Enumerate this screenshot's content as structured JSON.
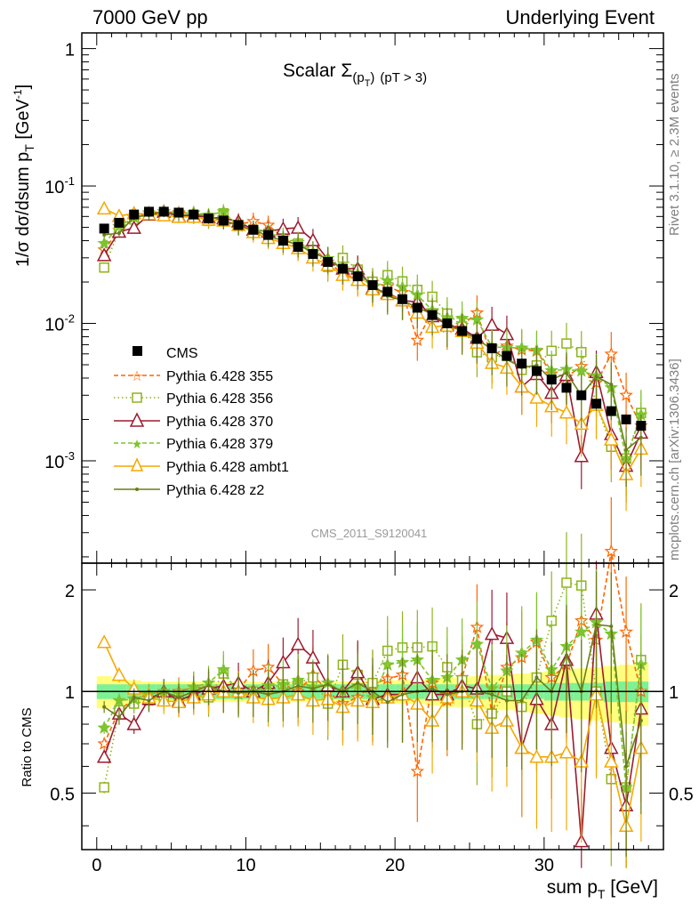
{
  "header": {
    "left": "7000 GeV pp",
    "right": "Underlying Event"
  },
  "plot_title": {
    "prefix": "Scalar ",
    "sigma": "Σ",
    "sub": "(p",
    "subsub": "T",
    "close": ")",
    "cut": "(pT >  3)"
  },
  "side_labels": {
    "rivet": "Rivet 3.1.10, ≥ 2.3M events",
    "mcplots": "mcplots.cern.ch [arXiv:1306.3436]"
  },
  "analysis_id": "CMS_2011_S9120041",
  "axes": {
    "ylabel_main": "1/σ dσ/dsum p",
    "ylabel_main_sub": "T",
    "ylabel_main_unit": " [GeV",
    "ylabel_main_exp": "-1",
    "ylabel_main_close": "]",
    "ylabel_ratio": "Ratio to CMS",
    "xlabel": "sum p",
    "xlabel_sub": "T",
    "xlabel_unit": " [GeV]",
    "x_ticks": [
      "0",
      "10",
      "20",
      "30"
    ],
    "y_main_ticks": [
      "1",
      "10",
      "10",
      "10"
    ],
    "y_main_exps": [
      "",
      "-1",
      "-2",
      "-3"
    ],
    "y_ratio_ticks": [
      "0.5",
      "1",
      "2"
    ]
  },
  "legend": [
    {
      "label": "CMS",
      "color": "#000000",
      "marker": "square-filled",
      "line": "none"
    },
    {
      "label": "Pythia 6.428 355",
      "color": "#ff6600",
      "marker": "star",
      "line": "dashed"
    },
    {
      "label": "Pythia 6.428 356",
      "color": "#8fb31d",
      "marker": "square-open",
      "line": "dotted"
    },
    {
      "label": "Pythia 6.428 370",
      "color": "#9b1b30",
      "marker": "triangle-open",
      "line": "solid"
    },
    {
      "label": "Pythia 6.428 379",
      "color": "#7dc42e",
      "marker": "star",
      "line": "dashed"
    },
    {
      "label": "Pythia 6.428 ambt1",
      "color": "#f5a800",
      "marker": "triangle-open",
      "line": "solid"
    },
    {
      "label": "Pythia 6.428 z2",
      "color": "#6b7d1a",
      "marker": "dot",
      "line": "solid"
    }
  ],
  "chart_data": {
    "type": "line",
    "log_y": true,
    "xlim": [
      -1,
      38
    ],
    "ylim_main": [
      0.00018,
      1.3
    ],
    "ylim_ratio": [
      0.34,
      2.4
    ],
    "grid": false,
    "legend_position": "bottom-left",
    "x": [
      0.5,
      1.5,
      2.5,
      3.5,
      4.5,
      5.5,
      6.5,
      7.5,
      8.5,
      9.5,
      10.5,
      11.5,
      12.5,
      13.5,
      14.5,
      15.5,
      16.5,
      17.5,
      18.5,
      19.5,
      20.5,
      21.5,
      22.5,
      23.5,
      24.5,
      25.5,
      26.5,
      27.5,
      28.5,
      29.5,
      30.5,
      31.5,
      32.5,
      33.5,
      34.5,
      35.5,
      36.5
    ],
    "cms": [
      0.049,
      0.054,
      0.062,
      0.065,
      0.065,
      0.064,
      0.062,
      0.058,
      0.056,
      0.052,
      0.048,
      0.044,
      0.04,
      0.036,
      0.032,
      0.028,
      0.025,
      0.022,
      0.019,
      0.017,
      0.015,
      0.013,
      0.0115,
      0.01,
      0.0088,
      0.0077,
      0.0066,
      0.0058,
      0.0051,
      0.0045,
      0.0039,
      0.0034,
      0.003,
      0.0026,
      0.0023,
      0.002,
      0.0018
    ],
    "cms_band_stat": [
      0.05,
      0.05,
      0.05,
      0.05,
      0.05,
      0.05,
      0.05,
      0.05,
      0.05,
      0.05,
      0.05,
      0.05,
      0.05,
      0.05,
      0.05,
      0.05,
      0.05,
      0.05,
      0.05,
      0.05,
      0.05,
      0.05,
      0.05,
      0.05,
      0.05,
      0.05,
      0.05,
      0.05,
      0.05,
      0.05,
      0.06,
      0.06,
      0.06,
      0.06,
      0.07,
      0.07,
      0.07
    ],
    "cms_band_total": [
      0.11,
      0.09,
      0.08,
      0.07,
      0.07,
      0.07,
      0.07,
      0.07,
      0.07,
      0.07,
      0.07,
      0.07,
      0.07,
      0.07,
      0.07,
      0.07,
      0.07,
      0.07,
      0.08,
      0.08,
      0.08,
      0.08,
      0.09,
      0.1,
      0.1,
      0.11,
      0.12,
      0.12,
      0.13,
      0.14,
      0.15,
      0.16,
      0.17,
      0.18,
      0.19,
      0.2,
      0.21
    ],
    "series": [
      {
        "name": "Pythia 6.428 355",
        "ratio": [
          0.7,
          0.88,
          0.95,
          0.98,
          1.0,
          1.0,
          1.03,
          1.02,
          1.0,
          1.01,
          1.15,
          1.18,
          1.05,
          1.0,
          1.12,
          1.0,
          0.92,
          0.96,
          1.05,
          1.09,
          1.12,
          0.58,
          1.06,
          0.94,
          1.1,
          1.55,
          0.86,
          1.18,
          1.26,
          1.4,
          1.1,
          1.2,
          1.62,
          1.42,
          2.6,
          1.5,
          1.0
        ]
      },
      {
        "name": "Pythia 6.428 356",
        "ratio": [
          0.52,
          0.88,
          0.92,
          0.94,
          0.96,
          0.96,
          0.96,
          0.96,
          1.13,
          1.0,
          1.0,
          1.02,
          1.05,
          1.06,
          1.1,
          0.92,
          1.2,
          1.12,
          1.06,
          1.32,
          1.35,
          1.35,
          1.36,
          1.18,
          1.08,
          0.8,
          0.86,
          1.0,
          0.9,
          1.1,
          1.62,
          2.1,
          2.06,
          1.0,
          0.55,
          0.52,
          1.24
        ]
      },
      {
        "name": "Pythia 6.428 370",
        "ratio": [
          0.64,
          0.86,
          0.8,
          0.95,
          1.0,
          0.94,
          0.98,
          1.02,
          1.04,
          1.06,
          1.0,
          1.06,
          1.22,
          1.38,
          1.26,
          1.04,
          1.0,
          1.14,
          0.95,
          0.98,
          0.98,
          1.1,
          0.98,
          0.98,
          1.04,
          1.02,
          1.48,
          1.44,
          0.68,
          0.95,
          0.8,
          1.24,
          0.36,
          1.7,
          0.68,
          0.46,
          0.89
        ]
      },
      {
        "name": "Pythia 6.428 379",
        "ratio": [
          0.78,
          0.94,
          0.95,
          0.98,
          1.0,
          0.99,
          1.03,
          1.06,
          1.16,
          0.98,
          1.0,
          1.04,
          1.05,
          1.08,
          1.03,
          1.06,
          1.0,
          1.04,
          0.96,
          1.2,
          1.22,
          1.24,
          1.08,
          1.1,
          1.24,
          1.38,
          1.02,
          1.15,
          1.3,
          1.42,
          1.16,
          1.36,
          1.5,
          1.6,
          1.48,
          0.52,
          1.2
        ]
      },
      {
        "name": "Pythia 6.428 ambt1",
        "ratio": [
          1.4,
          1.12,
          1.02,
          0.96,
          0.94,
          0.93,
          0.96,
          0.98,
          1.0,
          1.0,
          0.96,
          0.95,
          0.96,
          0.98,
          0.94,
          0.95,
          0.9,
          0.94,
          0.93,
          0.96,
          0.98,
          0.92,
          0.82,
          0.96,
          1.0,
          0.94,
          0.78,
          0.82,
          0.68,
          0.64,
          0.64,
          0.66,
          0.62,
          0.98,
          0.62,
          0.4,
          0.68
        ]
      },
      {
        "name": "Pythia 6.428 z2",
        "ratio": [
          0.9,
          0.84,
          0.96,
          0.94,
          1.0,
          0.96,
          1.0,
          1.04,
          1.0,
          0.99,
          1.0,
          0.98,
          1.0,
          1.04,
          1.02,
          1.05,
          1.0,
          1.06,
          1.0,
          0.93,
          0.98,
          1.0,
          1.02,
          0.98,
          1.0,
          1.0,
          0.98,
          0.94,
          0.94,
          1.1,
          1.0,
          1.28,
          1.0,
          1.58,
          1.56,
          0.6,
          0.82
        ]
      }
    ]
  }
}
